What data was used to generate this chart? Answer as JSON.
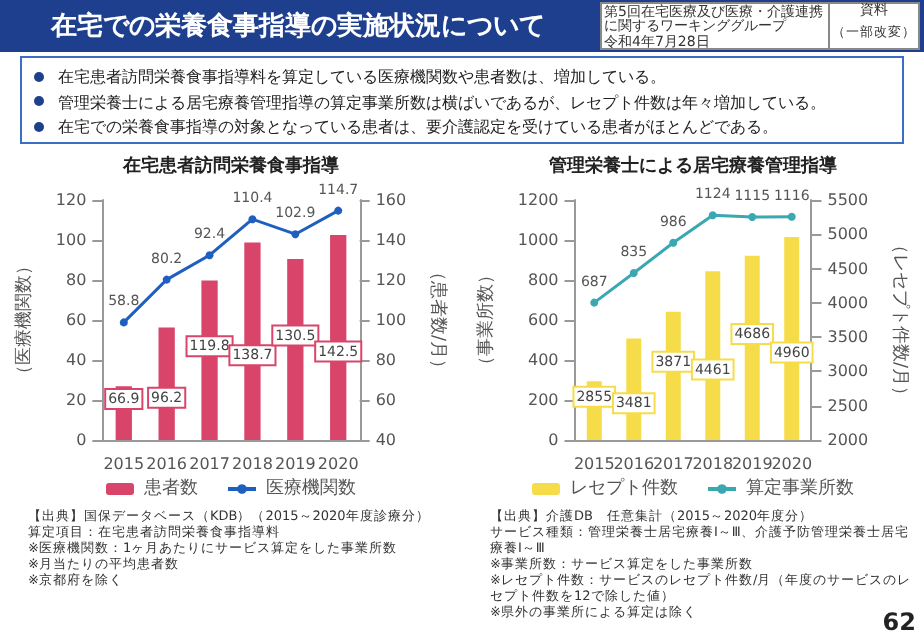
{
  "chart_data": [
    {
      "type": "other",
      "title": "在宅での栄養食事指導の実施状況について",
      "annotations": [
        "第5回在宅医療及び医療・介護連携に関するワーキンググループ",
        "令和4年7月28日",
        "資料",
        "（一部改変）",
        "在宅患者訪問栄養食事指導料を算定している医療機関数や患者数は、増加している。",
        "管理栄養士による居宅療養管理指導の算定事業所数は横ばいであるが、レセプト件数は年々増加している。",
        "在宅での栄養食事指導の対象となっている患者は、要介護認定を受けている患者がほとんどである。",
        "62"
      ]
    },
    {
      "type": "bar",
      "title": "在宅患者訪問栄養食事指導",
      "categories": [
        "2015",
        "2016",
        "2017",
        "2018",
        "2019",
        "2020"
      ],
      "ylabel": "（医療機関数）",
      "y2label": "（患者数/月）",
      "ylim": [
        0,
        120
      ],
      "yticks": [
        0,
        20,
        40,
        60,
        80,
        100,
        120
      ],
      "y2lim": [
        40,
        160
      ],
      "y2ticks": [
        40,
        60,
        80,
        100,
        120,
        140,
        160
      ],
      "data_labels": true,
      "grid": false,
      "legend": "bottom",
      "marker": "circle",
      "series": [
        {
          "name": "患者数",
          "type": "bar",
          "axis": "y2",
          "color": "#d9456a",
          "values": [
            66.9,
            96.2,
            119.8,
            138.7,
            130.5,
            142.5
          ]
        },
        {
          "name": "医療機関数",
          "type": "line",
          "color": "#1f5fbf",
          "values": [
            58.8,
            80.2,
            92.4,
            110.4,
            102.9,
            114.7
          ]
        }
      ],
      "annotations": [
        "【出典】国保データベース（KDB）（2015～2020年度診療分）",
        "算定項目：在宅患者訪問栄養食事指導料",
        "※医療機関数：1ヶ月あたりにサービス算定をした事業所数",
        "※月当たりの平均患者数",
        "※京都府を除く"
      ]
    },
    {
      "type": "bar",
      "title": "管理栄養士による居宅療養管理指導",
      "categories": [
        "2015",
        "2016",
        "2017",
        "2018",
        "2019",
        "2020"
      ],
      "ylabel": "（事業所数）",
      "y2label": "（レセプト件数/月）",
      "ylim": [
        0,
        1200
      ],
      "yticks": [
        0,
        200,
        400,
        600,
        800,
        1000,
        1200
      ],
      "y2lim": [
        2000,
        5500
      ],
      "y2ticks": [
        2000,
        2500,
        3000,
        3500,
        4000,
        4500,
        5000,
        5500
      ],
      "data_labels": true,
      "grid": false,
      "legend": "bottom",
      "marker": "circle",
      "series": [
        {
          "name": "レセプト件数",
          "type": "bar",
          "axis": "y2",
          "color": "#f7dc4a",
          "values": [
            2855,
            3481,
            3871,
            4461,
            4686,
            4960
          ]
        },
        {
          "name": "算定事業所数",
          "type": "line",
          "color": "#3aa8b0",
          "values": [
            687,
            835,
            986,
            1124,
            1115,
            1116
          ]
        }
      ],
      "annotations": [
        "【出典】介護DB　任意集計（2015～2020年度分）",
        "サービス種類：管理栄養士居宅療養Ⅰ～Ⅲ、介護予防管理栄養士居宅療養Ⅰ～Ⅲ",
        "※事業所数：サービス算定をした事業所数",
        "※レセプト件数：サービスのレセプト件数/月（年度のサービスのレセプト件数を12で除した値）",
        "※県外の事業所による算定は除く"
      ]
    }
  ]
}
